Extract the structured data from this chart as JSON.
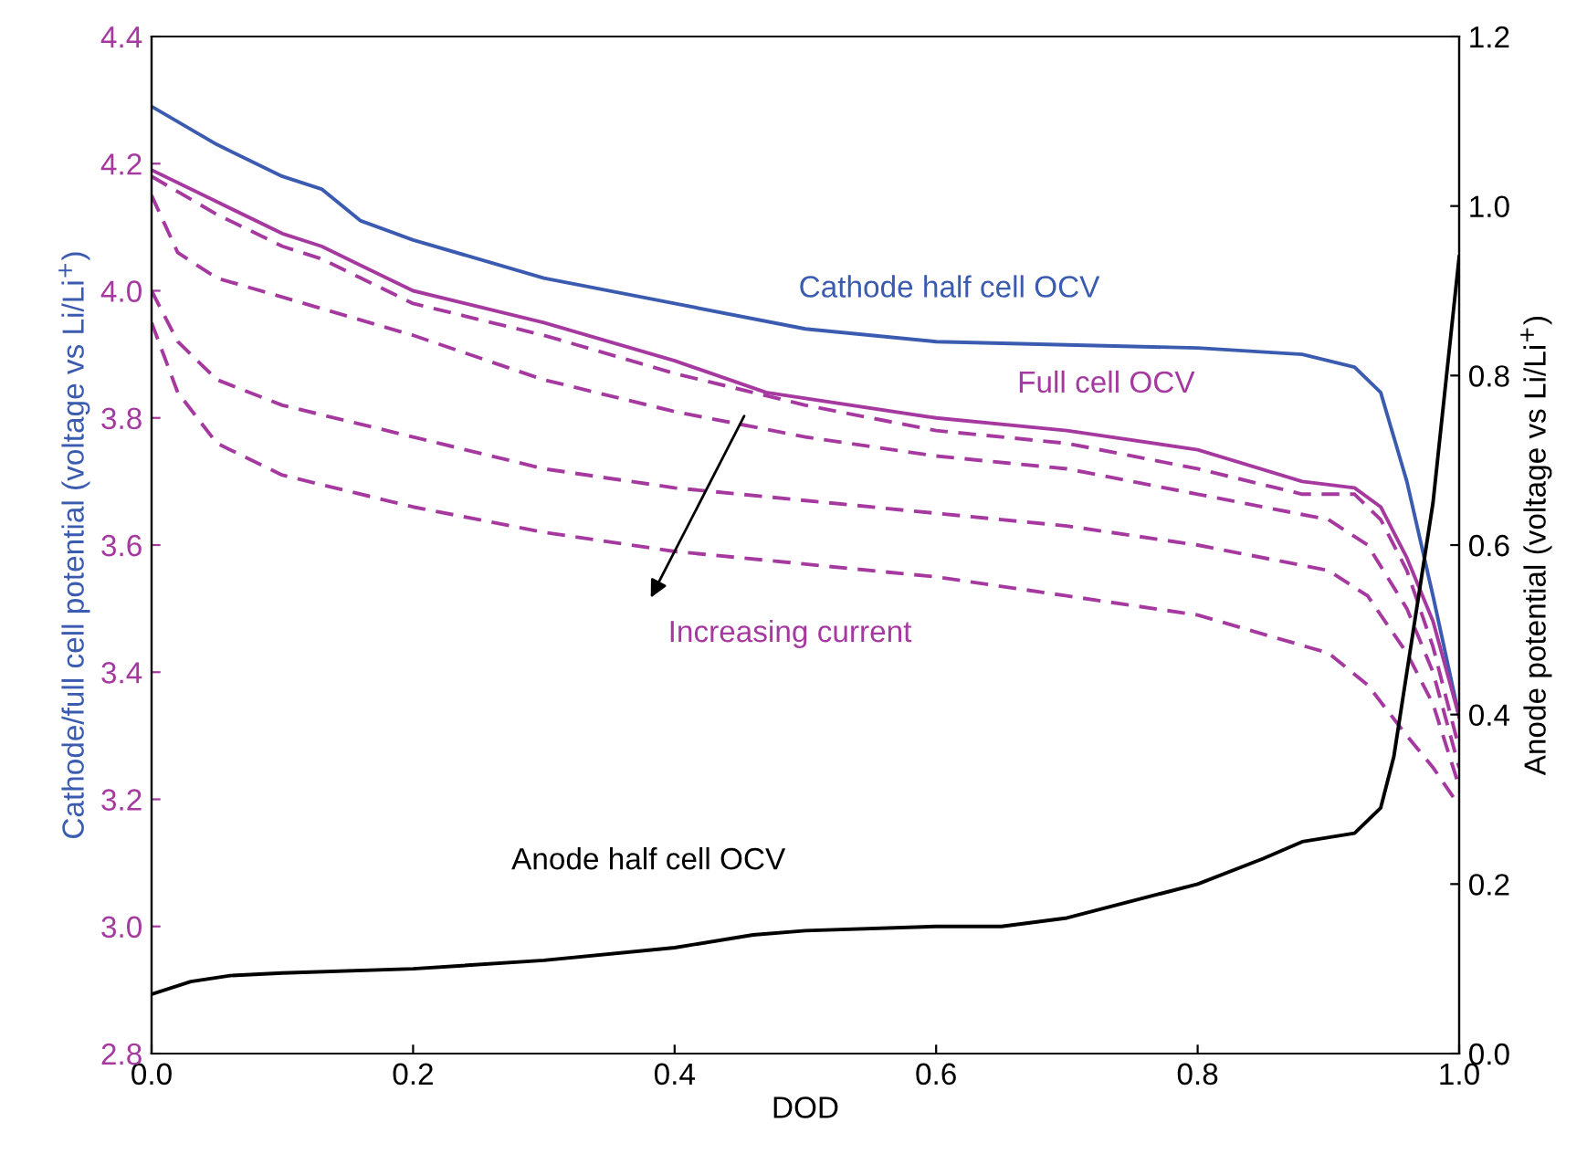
{
  "chart_data": {
    "type": "line",
    "xlabel": "DOD",
    "ylabel": "Cathode/full cell potential (voltage vs Li/Li$^{+}$)",
    "y2label": "Anode potential (voltage vs Li/Li$^{+}$)",
    "xlim": [
      0,
      1
    ],
    "xticks": [
      {
        "value": 0,
        "label": "0.0"
      },
      0.2,
      0.4,
      0.6,
      0.8,
      {
        "value": 1,
        "label": "1.0"
      }
    ],
    "ylim": [
      2.8,
      4.4
    ],
    "yticks": [
      2.8,
      {
        "value": 3,
        "label": "3.0"
      },
      3.2,
      3.4,
      3.6,
      3.8,
      {
        "value": 4,
        "label": "4.0"
      },
      4.2,
      4.4
    ],
    "y2lim": [
      0,
      1.2
    ],
    "y2ticks": [
      {
        "value": 0,
        "label": "0.0"
      },
      0.2,
      0.4,
      0.6,
      0.8,
      {
        "value": 1,
        "label": "1.0"
      },
      1.2
    ],
    "grid": false,
    "legend": false,
    "marker": "none",
    "series": [
      {
        "name": "Cathode half cell OCV",
        "color": "#3a5bb0",
        "line_style": "solid",
        "x": [
          0,
          0.05,
          0.1,
          0.13,
          0.16,
          0.2,
          0.3,
          0.4,
          0.5,
          0.6,
          0.7,
          0.8,
          0.88,
          0.92,
          0.94,
          0.96,
          0.98,
          1.0
        ],
        "values": [
          4.29,
          4.23,
          4.18,
          4.16,
          4.11,
          4.08,
          4.02,
          3.98,
          3.94,
          3.92,
          3.915,
          3.91,
          3.9,
          3.88,
          3.84,
          3.7,
          3.52,
          3.33
        ]
      },
      {
        "name": "Full cell OCV",
        "color": "#a5399f",
        "line_style": "solid",
        "x": [
          0,
          0.05,
          0.1,
          0.13,
          0.16,
          0.2,
          0.3,
          0.4,
          0.47,
          0.6,
          0.7,
          0.8,
          0.88,
          0.92,
          0.94,
          0.96,
          0.98,
          1.0
        ],
        "values": [
          4.19,
          4.14,
          4.09,
          4.07,
          4.04,
          4.0,
          3.95,
          3.89,
          3.84,
          3.8,
          3.78,
          3.75,
          3.7,
          3.69,
          3.66,
          3.58,
          3.48,
          3.33
        ]
      },
      {
        "color": "#a5399f",
        "line_style": "dashed",
        "x": [
          0,
          0.05,
          0.1,
          0.13,
          0.16,
          0.2,
          0.3,
          0.4,
          0.5,
          0.6,
          0.7,
          0.8,
          0.88,
          0.92,
          0.94,
          0.96,
          0.98,
          1.0
        ],
        "values": [
          4.18,
          4.12,
          4.07,
          4.05,
          4.02,
          3.98,
          3.93,
          3.87,
          3.82,
          3.78,
          3.76,
          3.72,
          3.68,
          3.68,
          3.64,
          3.56,
          3.44,
          3.28
        ]
      },
      {
        "color": "#a5399f",
        "line_style": "dashed",
        "x": [
          0,
          0.02,
          0.05,
          0.1,
          0.2,
          0.3,
          0.4,
          0.5,
          0.6,
          0.7,
          0.8,
          0.9,
          0.93,
          0.96,
          0.98,
          1.0
        ],
        "values": [
          4.15,
          4.06,
          4.02,
          3.99,
          3.93,
          3.86,
          3.81,
          3.77,
          3.74,
          3.72,
          3.68,
          3.64,
          3.6,
          3.5,
          3.4,
          3.25
        ]
      },
      {
        "color": "#a5399f",
        "line_style": "dashed",
        "x": [
          0,
          0.02,
          0.05,
          0.1,
          0.2,
          0.3,
          0.4,
          0.5,
          0.6,
          0.7,
          0.8,
          0.9,
          0.93,
          0.96,
          0.98,
          1.0
        ],
        "values": [
          4.0,
          3.92,
          3.86,
          3.82,
          3.77,
          3.72,
          3.69,
          3.67,
          3.65,
          3.63,
          3.6,
          3.56,
          3.52,
          3.43,
          3.35,
          3.22
        ]
      },
      {
        "color": "#a5399f",
        "line_style": "dashed",
        "x": [
          0,
          0.02,
          0.05,
          0.1,
          0.2,
          0.3,
          0.4,
          0.5,
          0.6,
          0.7,
          0.8,
          0.9,
          0.93,
          0.96,
          0.98,
          1.0
        ],
        "values": [
          3.95,
          3.84,
          3.76,
          3.71,
          3.66,
          3.62,
          3.59,
          3.57,
          3.55,
          3.52,
          3.49,
          3.43,
          3.38,
          3.3,
          3.25,
          3.19
        ]
      },
      {
        "name": "Anode half cell OCV",
        "color": "#000000",
        "line_style": "solid",
        "axis": "y2",
        "x": [
          0,
          0.03,
          0.06,
          0.1,
          0.2,
          0.3,
          0.4,
          0.46,
          0.5,
          0.6,
          0.65,
          0.7,
          0.8,
          0.85,
          0.88,
          0.92,
          0.94,
          0.95,
          0.96,
          0.98,
          1.0
        ],
        "values": [
          0.07,
          0.085,
          0.092,
          0.095,
          0.1,
          0.11,
          0.125,
          0.14,
          0.145,
          0.15,
          0.15,
          0.16,
          0.2,
          0.23,
          0.25,
          0.26,
          0.29,
          0.35,
          0.45,
          0.65,
          0.94
        ]
      }
    ],
    "annotations": [
      "Increasing current"
    ]
  }
}
